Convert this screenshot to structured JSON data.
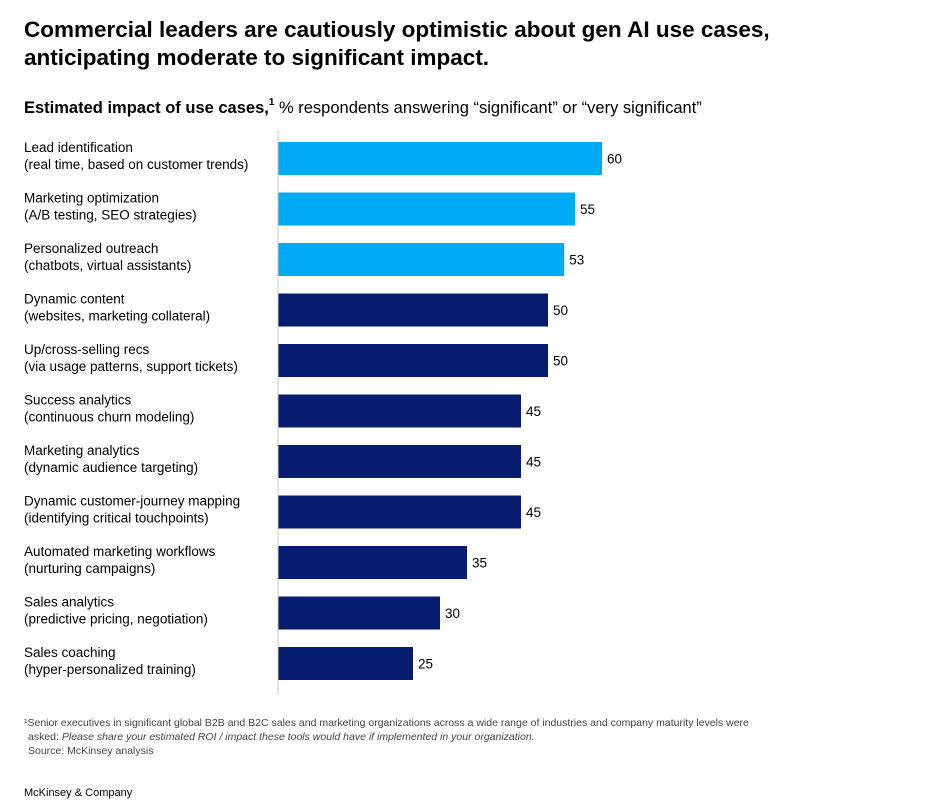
{
  "title_line1": "Commercial leaders are cautiously optimistic about gen AI use cases,",
  "title_line2": "anticipating moderate to significant impact.",
  "subtitle_bold": "Estimated impact of use cases,",
  "subtitle_sup": "1",
  "subtitle_regular": " % respondents answering “significant” or “very significant”",
  "colors": {
    "highlight": "#00a9f4",
    "base": "#051c6f",
    "axis": "#c8c8c8"
  },
  "chart_data": {
    "type": "bar",
    "orientation": "horizontal",
    "categories": [
      [
        "Lead identification",
        "(real time, based on customer trends)"
      ],
      [
        "Marketing optimization",
        "(A/B testing, SEO strategies)"
      ],
      [
        "Personalized outreach",
        "(chatbots, virtual assistants)"
      ],
      [
        "Dynamic content",
        "(websites, marketing collateral)"
      ],
      [
        "Up/cross-selling recs",
        "(via usage patterns, support tickets)"
      ],
      [
        "Success analytics",
        "(continuous churn modeling)"
      ],
      [
        "Marketing analytics",
        "(dynamic audience targeting)"
      ],
      [
        "Dynamic customer-journey mapping",
        "(identifying critical touchpoints)"
      ],
      [
        "Automated marketing workflows",
        "(nurturing campaigns)"
      ],
      [
        "Sales analytics",
        "(predictive pricing, negotiation)"
      ],
      [
        "Sales coaching",
        "(hyper-personalized training)"
      ]
    ],
    "values": [
      60,
      55,
      53,
      50,
      50,
      45,
      45,
      45,
      35,
      30,
      25
    ],
    "highlighted": [
      true,
      true,
      true,
      false,
      false,
      false,
      false,
      false,
      false,
      false,
      false
    ],
    "xlim": [
      0,
      100
    ],
    "grid": false,
    "legend": "none"
  },
  "footnote": {
    "line1": "¹Senior executives in significant global B2B and B2C sales and marketing organizations across a wide range of industries and company maturity levels were",
    "line2_prefix": "asked: ",
    "line2_italic": "Please share your estimated ROI / impact these tools would have if implemented in your organization.",
    "line3": "Source: McKinsey analysis"
  },
  "brand": "McKinsey & Company"
}
